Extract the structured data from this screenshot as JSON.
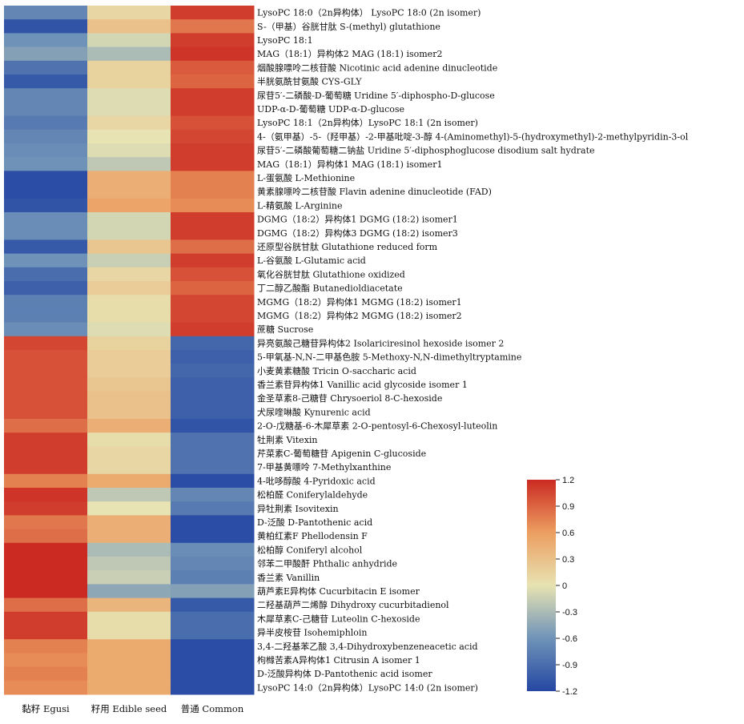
{
  "chart_data": {
    "type": "heatmap",
    "title": "",
    "columns": [
      "黏籽 Egusi",
      "籽用 Edible seed",
      "普通 Common"
    ],
    "rows": [
      "LysoPC 18:0（2n异构体） LysoPC 18:0 (2n isomer)",
      "S-（甲基）谷胱甘肽 S-(methyl) glutathione",
      "LysoPC 18:1",
      "MAG（18:1）异构体2 MAG (18:1) isomer2",
      "烟酸腺嘌呤二核苷酸 Nicotinic acid adenine dinucleotide",
      "半胱氨酰甘氨酸 CYS-GLY",
      "尿苷5′-二磷酸-D-葡萄糖 Uridine 5′-diphospho-D-glucose",
      "UDP-α-D-葡萄糖 UDP-α-D-glucose",
      "LysoPC 18:1（2n异构体）LysoPC 18:1 (2n isomer)",
      "4-（氨甲基）-5-（羟甲基）-2-甲基吡啶-3-醇 4-(Aminomethyl)-5-(hydroxymethyl)-2-methylpyridin-3-ol",
      "尿苷5′-二磷酸葡萄糖二钠盐 Uridine 5′-diphosphoglucose disodium salt hydrate",
      "MAG（18:1）异构体1 MAG (18:1) isomer1",
      "L-蛋氨酸 L-Methionine",
      "黄素腺嘌呤二核苷酸 Flavin adenine dinucleotide (FAD)",
      "L-精氨酸 L-Arginine",
      "DGMG（18:2）异构体1 DGMG (18:2) isomer1",
      "DGMG（18:2）异构体3 DGMG (18:2) isomer3",
      "还原型谷胱甘肽 Glutathione reduced form",
      "L-谷氨酸 L-Glutamic acid",
      "氧化谷胱甘肽 Glutathione oxidized",
      "丁二醇乙酸酯 Butanedioldiacetate",
      "MGMG（18:2）异构体1 MGMG (18:2) isomer1",
      "MGMG（18:2）异构体2 MGMG (18:2) isomer2",
      "蔗糖 Sucrose",
      "异亮氨酸己糖苷异构体2 Isolariciresinol hexoside isomer 2",
      "5-甲氧基-N,N-二甲基色胺 5-Methoxy-N,N-dimethyltryptamine",
      "小麦黄素糖酸 Tricin O-saccharic acid",
      "香兰素苷异构体1 Vanillic acid glycoside isomer 1",
      "金圣草素8-己糖苷 Chrysoeriol 8-C-hexoside",
      "犬尿喹啉酸 Kynurenic acid",
      "2-O-戊糖基-6-木犀草素 2-O-pentosyl-6-Chexosyl-luteolin",
      "牡荆素 Vitexin",
      "芹菜素C-葡萄糖苷 Apigenin C-glucoside",
      "7-甲基黄嘌呤 7-Methylxanthine",
      "4-吡哆醇酸 4-Pyridoxic acid",
      "松柏醛 Coniferylaldehyde",
      "异牡荆素 Isovitexin",
      "D-泛酸 D-Pantothenic acid",
      "黄柏红素F Phellodensin F",
      "松柏醇 Coniferyl alcohol",
      "邻苯二甲酸酐 Phthalic anhydride",
      "香兰素 Vanillin",
      "葫芦素E异构体 Cucurbitacin E isomer",
      "二羟基葫芦二烯醇 Dihydroxy cucurbitadienol",
      "木犀草素C-己糖苷 Luteolin C-hexoside",
      "异半皮桉苷 Isohemiphloin",
      "3,4-二羟基苯乙酸 3,4-Dihydroxybenzeneacetic acid",
      "枸橼苦素A异构体1 Citrusin A isomer 1",
      "D-泛酸异构体 D-Pantothenic acid isomer",
      "LysoPC 14:0（2n异构体）LysoPC 14:0 (2n isomer)"
    ],
    "values": [
      [
        -0.7,
        0.1,
        1.1
      ],
      [
        -1.1,
        0.3,
        0.8
      ],
      [
        -0.6,
        -0.1,
        1.1
      ],
      [
        -0.5,
        -0.3,
        1.15
      ],
      [
        -0.85,
        0.15,
        0.95
      ],
      [
        -1.05,
        0.15,
        0.9
      ],
      [
        -0.7,
        -0.05,
        1.1
      ],
      [
        -0.7,
        -0.05,
        1.1
      ],
      [
        -0.8,
        0.1,
        1.0
      ],
      [
        -0.7,
        0.0,
        1.05
      ],
      [
        -0.65,
        -0.05,
        1.1
      ],
      [
        -0.6,
        -0.2,
        1.1
      ],
      [
        -1.15,
        0.45,
        0.75
      ],
      [
        -1.15,
        0.45,
        0.75
      ],
      [
        -1.1,
        0.55,
        0.7
      ],
      [
        -0.65,
        -0.1,
        1.1
      ],
      [
        -0.65,
        -0.1,
        1.1
      ],
      [
        -1.05,
        0.25,
        0.85
      ],
      [
        -0.6,
        -0.15,
        1.1
      ],
      [
        -0.9,
        0.1,
        1.0
      ],
      [
        -1.0,
        0.2,
        0.9
      ],
      [
        -0.75,
        0.05,
        1.05
      ],
      [
        -0.75,
        0.05,
        1.05
      ],
      [
        -0.65,
        -0.05,
        1.1
      ],
      [
        1.05,
        0.15,
        -0.95
      ],
      [
        1.0,
        0.2,
        -1.0
      ],
      [
        1.0,
        0.2,
        -0.95
      ],
      [
        1.0,
        0.25,
        -1.0
      ],
      [
        1.0,
        0.3,
        -1.0
      ],
      [
        1.0,
        0.3,
        -1.0
      ],
      [
        0.85,
        0.45,
        -1.1
      ],
      [
        1.1,
        0.05,
        -0.85
      ],
      [
        1.1,
        0.1,
        -0.85
      ],
      [
        1.1,
        0.1,
        -0.85
      ],
      [
        0.75,
        0.5,
        -1.15
      ],
      [
        1.15,
        -0.2,
        -0.7
      ],
      [
        1.1,
        0.0,
        -0.8
      ],
      [
        0.8,
        0.45,
        -1.15
      ],
      [
        0.85,
        0.45,
        -1.15
      ],
      [
        1.2,
        -0.3,
        -0.65
      ],
      [
        1.2,
        -0.2,
        -0.7
      ],
      [
        1.2,
        -0.15,
        -0.75
      ],
      [
        1.2,
        -0.45,
        -0.5
      ],
      [
        0.85,
        0.4,
        -1.05
      ],
      [
        1.1,
        0.05,
        -0.9
      ],
      [
        1.1,
        0.05,
        -0.9
      ],
      [
        0.75,
        0.5,
        -1.15
      ],
      [
        0.7,
        0.5,
        -1.15
      ],
      [
        0.75,
        0.5,
        -1.15
      ],
      [
        0.7,
        0.5,
        -1.15
      ]
    ],
    "color_scale": {
      "min": -1.2,
      "max": 1.2,
      "ticks": [
        "1.2",
        "0.9",
        "0.6",
        "0.3",
        "0",
        "-0.3",
        "-0.6",
        "-0.9",
        "-1.2"
      ],
      "colors": [
        "#2547a3",
        "#6f93b8",
        "#e7e3b2",
        "#ec9e61",
        "#cb2a22"
      ]
    }
  }
}
